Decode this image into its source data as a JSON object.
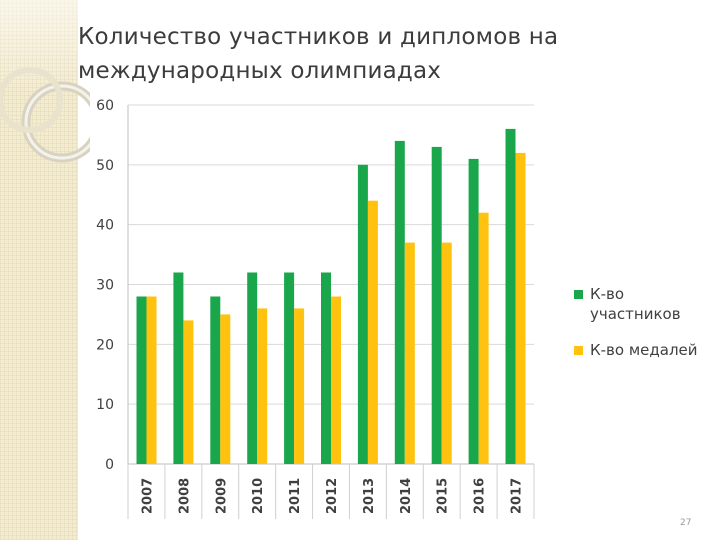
{
  "title": "Количество участников и дипломов на международных олимпиадах",
  "page_number": "27",
  "colors": {
    "participants": "#1aa64b",
    "medals": "#ffc20e"
  },
  "chart_data": {
    "type": "bar",
    "title": "",
    "xlabel": "",
    "ylabel": "",
    "categories": [
      "2007",
      "2008",
      "2009",
      "2010",
      "2011",
      "2012",
      "2013",
      "2014",
      "2015",
      "2016",
      "2017"
    ],
    "series": [
      {
        "name": "К-во участников",
        "values": [
          28,
          32,
          28,
          32,
          32,
          32,
          50,
          54,
          53,
          51,
          56
        ]
      },
      {
        "name": "К-во медалей",
        "values": [
          28,
          24,
          25,
          26,
          26,
          28,
          44,
          37,
          37,
          42,
          52
        ]
      }
    ],
    "ylim": [
      0,
      60
    ],
    "yticks": [
      0,
      10,
      20,
      30,
      40,
      50,
      60
    ],
    "grid": true,
    "legend_position": "right"
  }
}
